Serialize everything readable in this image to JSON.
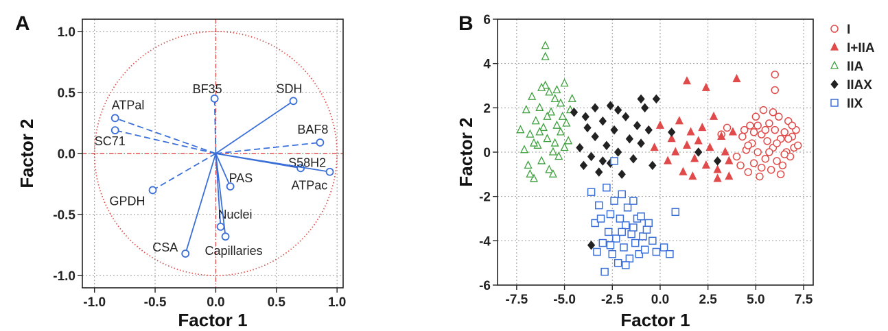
{
  "chart_data": [
    {
      "panel": "A",
      "type": "scatter",
      "subtype": "loading-plot",
      "xlabel": "Factor 1",
      "ylabel": "Factor 2",
      "xlim": [
        -1.1,
        1.05
      ],
      "ylim": [
        -1.1,
        1.1
      ],
      "xticks": [
        -1.0,
        -0.5,
        0.0,
        0.5,
        1.0
      ],
      "yticks": [
        -1.0,
        -0.5,
        0.0,
        0.5,
        1.0
      ],
      "xtick_labels": [
        "-1.0",
        "-0.5",
        "0.0",
        "0.5",
        "1.0"
      ],
      "ytick_labels": [
        "-1.0",
        "-0.5",
        "0.0",
        "0.5",
        "1.0"
      ],
      "grid": true,
      "unit_circle": true,
      "colors": {
        "vector": "#3b6fd8",
        "circle": "#e05050",
        "zero_lines": "#e05050"
      },
      "vectors": [
        {
          "label": "BF35",
          "x": -0.01,
          "y": 0.45,
          "style": "dashed"
        },
        {
          "label": "SDH",
          "x": 0.64,
          "y": 0.43,
          "style": "solid"
        },
        {
          "label": "ATPal",
          "x": -0.83,
          "y": 0.29,
          "style": "dashed"
        },
        {
          "label": "SC71",
          "x": -0.83,
          "y": 0.19,
          "style": "dashed"
        },
        {
          "label": "BAF8",
          "x": 0.86,
          "y": 0.09,
          "style": "dashed"
        },
        {
          "label": "S58H2",
          "x": 0.7,
          "y": -0.12,
          "style": "solid"
        },
        {
          "label": "ATPac",
          "x": 0.94,
          "y": -0.15,
          "style": "solid"
        },
        {
          "label": "PAS",
          "x": 0.12,
          "y": -0.27,
          "style": "solid"
        },
        {
          "label": "GPDH",
          "x": -0.52,
          "y": -0.3,
          "style": "dashed"
        },
        {
          "label": "Nuclei",
          "x": 0.04,
          "y": -0.6,
          "style": "solid"
        },
        {
          "label": "Capillaries",
          "x": 0.08,
          "y": -0.68,
          "style": "solid"
        },
        {
          "label": "CSA",
          "x": -0.25,
          "y": -0.82,
          "style": "solid"
        }
      ]
    },
    {
      "panel": "B",
      "type": "scatter",
      "xlabel": "Factor 1",
      "ylabel": "Factor 2",
      "xlim": [
        -8.5,
        8.0
      ],
      "ylim": [
        -6.0,
        6.0
      ],
      "xticks": [
        -7.5,
        -5.0,
        -2.5,
        0.0,
        2.5,
        5.0,
        7.5
      ],
      "yticks": [
        -6,
        -4,
        -2,
        0,
        2,
        4,
        6
      ],
      "xtick_labels": [
        "-7.5",
        "-5.0",
        "-2.5",
        "0.0",
        "2.5",
        "5.0",
        "7.5"
      ],
      "ytick_labels": [
        "-6",
        "-4",
        "-2",
        "0",
        "2",
        "4",
        "6"
      ],
      "grid": true,
      "legend": "outside-right",
      "series": [
        {
          "name": "I",
          "marker": "circle-open",
          "color": "#e04a4a",
          "points": [
            [
              4.0,
              -0.2
            ],
            [
              4.3,
              0.7
            ],
            [
              4.5,
              0.1
            ],
            [
              4.6,
              -0.9
            ],
            [
              4.7,
              1.2
            ],
            [
              4.8,
              0.4
            ],
            [
              4.9,
              -0.5
            ],
            [
              5.0,
              1.6
            ],
            [
              5.1,
              0.0
            ],
            [
              5.2,
              -1.1
            ],
            [
              5.3,
              0.8
            ],
            [
              5.4,
              1.9
            ],
            [
              5.5,
              -0.3
            ],
            [
              5.6,
              0.5
            ],
            [
              5.7,
              1.3
            ],
            [
              5.8,
              -0.8
            ],
            [
              5.9,
              0.2
            ],
            [
              6.0,
              1.0
            ],
            [
              6.1,
              -0.4
            ],
            [
              6.2,
              1.6
            ],
            [
              6.3,
              0.6
            ],
            [
              6.4,
              -0.6
            ],
            [
              6.5,
              0.9
            ],
            [
              6.6,
              0.0
            ],
            [
              6.7,
              1.4
            ],
            [
              6.8,
              -0.2
            ],
            [
              6.9,
              0.7
            ],
            [
              7.0,
              0.2
            ],
            [
              7.1,
              1.0
            ],
            [
              7.2,
              0.3
            ],
            [
              4.2,
              -0.6
            ],
            [
              4.4,
              1.0
            ],
            [
              4.9,
              0.9
            ],
            [
              5.3,
              -0.7
            ],
            [
              5.7,
              0.0
            ],
            [
              6.1,
              0.4
            ],
            [
              6.5,
              -0.1
            ],
            [
              6.9,
              1.2
            ],
            [
              5.1,
              1.2
            ],
            [
              5.9,
              1.8
            ],
            [
              6.3,
              -1.0
            ],
            [
              4.6,
              0.3
            ],
            [
              5.5,
              1.0
            ],
            [
              6.7,
              0.6
            ],
            [
              6.0,
              3.5
            ],
            [
              6.0,
              2.8
            ],
            [
              3.5,
              1.1
            ],
            [
              3.2,
              0.8
            ]
          ]
        },
        {
          "name": "I+IIA",
          "marker": "triangle-filled",
          "color": "#e04a4a",
          "points": [
            [
              -0.3,
              0.2
            ],
            [
              0.0,
              1.2
            ],
            [
              0.4,
              -0.4
            ],
            [
              0.6,
              0.6
            ],
            [
              0.8,
              0.0
            ],
            [
              1.0,
              1.4
            ],
            [
              1.2,
              -0.9
            ],
            [
              1.4,
              0.3
            ],
            [
              1.6,
              0.9
            ],
            [
              1.8,
              -0.3
            ],
            [
              2.0,
              0.5
            ],
            [
              2.2,
              1.1
            ],
            [
              2.4,
              -0.6
            ],
            [
              2.6,
              0.2
            ],
            [
              2.8,
              1.6
            ],
            [
              3.0,
              -0.8
            ],
            [
              3.2,
              0.7
            ],
            [
              3.4,
              0.0
            ],
            [
              3.6,
              -0.4
            ],
            [
              3.8,
              0.9
            ],
            [
              1.4,
              3.2
            ],
            [
              2.4,
              2.9
            ],
            [
              4.0,
              3.3
            ],
            [
              1.7,
              -1.1
            ],
            [
              3.0,
              -1.2
            ],
            [
              3.6,
              -1.1
            ]
          ]
        },
        {
          "name": "IIA",
          "marker": "triangle-open",
          "color": "#3ea03e",
          "points": [
            [
              -7.3,
              1.0
            ],
            [
              -7.1,
              0.1
            ],
            [
              -7.0,
              1.9
            ],
            [
              -6.9,
              -0.6
            ],
            [
              -6.8,
              0.8
            ],
            [
              -6.7,
              2.5
            ],
            [
              -6.6,
              -1.2
            ],
            [
              -6.5,
              1.4
            ],
            [
              -6.4,
              0.3
            ],
            [
              -6.3,
              2.0
            ],
            [
              -6.2,
              -0.4
            ],
            [
              -6.1,
              1.1
            ],
            [
              -6.0,
              3.0
            ],
            [
              -5.9,
              0.6
            ],
            [
              -5.8,
              -0.8
            ],
            [
              -5.7,
              1.8
            ],
            [
              -5.6,
              0.0
            ],
            [
              -5.5,
              2.4
            ],
            [
              -5.4,
              1.2
            ],
            [
              -5.3,
              -0.2
            ],
            [
              -5.2,
              0.9
            ],
            [
              -5.1,
              1.6
            ],
            [
              -5.0,
              0.2
            ],
            [
              -4.9,
              1.3
            ],
            [
              -4.8,
              0.5
            ],
            [
              -4.7,
              1.9
            ],
            [
              -6.3,
              0.9
            ],
            [
              -5.9,
              1.6
            ],
            [
              -5.5,
              0.4
            ],
            [
              -6.6,
              0.4
            ],
            [
              -5.2,
              2.2
            ],
            [
              -4.6,
              2.4
            ],
            [
              -6.0,
              4.8
            ],
            [
              -6.0,
              4.3
            ],
            [
              -5.0,
              3.1
            ],
            [
              -6.8,
              -1.0
            ],
            [
              -5.6,
              -1.0
            ],
            [
              -6.2,
              2.9
            ],
            [
              -5.8,
              2.7
            ],
            [
              -5.4,
              2.8
            ]
          ]
        },
        {
          "name": "IIAX",
          "marker": "diamond-filled",
          "color": "#222222",
          "points": [
            [
              -4.5,
              1.8
            ],
            [
              -4.2,
              0.2
            ],
            [
              -4.0,
              -0.6
            ],
            [
              -3.8,
              1.1
            ],
            [
              -3.6,
              -0.2
            ],
            [
              -3.4,
              0.7
            ],
            [
              -3.2,
              -0.9
            ],
            [
              -3.0,
              1.4
            ],
            [
              -2.8,
              0.3
            ],
            [
              -2.6,
              -0.5
            ],
            [
              -2.4,
              1.0
            ],
            [
              -2.2,
              0.0
            ],
            [
              -2.0,
              -1.0
            ],
            [
              -1.8,
              1.6
            ],
            [
              -1.6,
              0.6
            ],
            [
              -1.4,
              -0.3
            ],
            [
              -1.2,
              1.2
            ],
            [
              -1.0,
              0.4
            ],
            [
              -0.8,
              2.0
            ],
            [
              -0.6,
              1.0
            ],
            [
              -0.4,
              -0.6
            ],
            [
              -3.4,
              2.0
            ],
            [
              -2.6,
              2.1
            ],
            [
              -1.0,
              2.4
            ],
            [
              -0.2,
              2.4
            ],
            [
              -3.9,
              1.6
            ],
            [
              -3.0,
              -0.4
            ],
            [
              -2.2,
              1.9
            ],
            [
              0.6,
              0.9
            ],
            [
              2.0,
              0.0
            ],
            [
              3.0,
              -0.4
            ],
            [
              -3.6,
              -4.2
            ]
          ]
        },
        {
          "name": "IIX",
          "marker": "square-open",
          "color": "#3b6fd8",
          "points": [
            [
              -3.6,
              -1.8
            ],
            [
              -3.4,
              -3.2
            ],
            [
              -3.2,
              -2.4
            ],
            [
              -3.0,
              -4.1
            ],
            [
              -2.9,
              -5.4
            ],
            [
              -2.8,
              -1.6
            ],
            [
              -2.7,
              -3.6
            ],
            [
              -2.6,
              -2.8
            ],
            [
              -2.5,
              -4.6
            ],
            [
              -2.4,
              -2.2
            ],
            [
              -2.3,
              -3.9
            ],
            [
              -2.2,
              -5.0
            ],
            [
              -2.1,
              -3.0
            ],
            [
              -2.0,
              -1.9
            ],
            [
              -1.9,
              -4.3
            ],
            [
              -1.8,
              -3.3
            ],
            [
              -1.7,
              -2.5
            ],
            [
              -1.6,
              -4.8
            ],
            [
              -1.5,
              -3.7
            ],
            [
              -1.4,
              -2.2
            ],
            [
              -1.3,
              -4.1
            ],
            [
              -1.2,
              -3.0
            ],
            [
              -1.1,
              -4.6
            ],
            [
              -1.0,
              -2.9
            ],
            [
              -0.9,
              -3.8
            ],
            [
              -0.8,
              -4.4
            ],
            [
              -0.6,
              -3.2
            ],
            [
              -0.4,
              -4.0
            ],
            [
              -0.2,
              -4.5
            ],
            [
              0.2,
              -4.3
            ],
            [
              0.5,
              -4.6
            ],
            [
              0.8,
              -2.7
            ],
            [
              -2.4,
              -0.4
            ],
            [
              -3.1,
              -3.0
            ],
            [
              -2.0,
              -3.6
            ],
            [
              -1.4,
              -3.4
            ],
            [
              -0.7,
              -3.5
            ],
            [
              -2.6,
              -4.2
            ],
            [
              -1.8,
              -5.1
            ],
            [
              -3.3,
              -4.5
            ]
          ]
        }
      ]
    }
  ]
}
